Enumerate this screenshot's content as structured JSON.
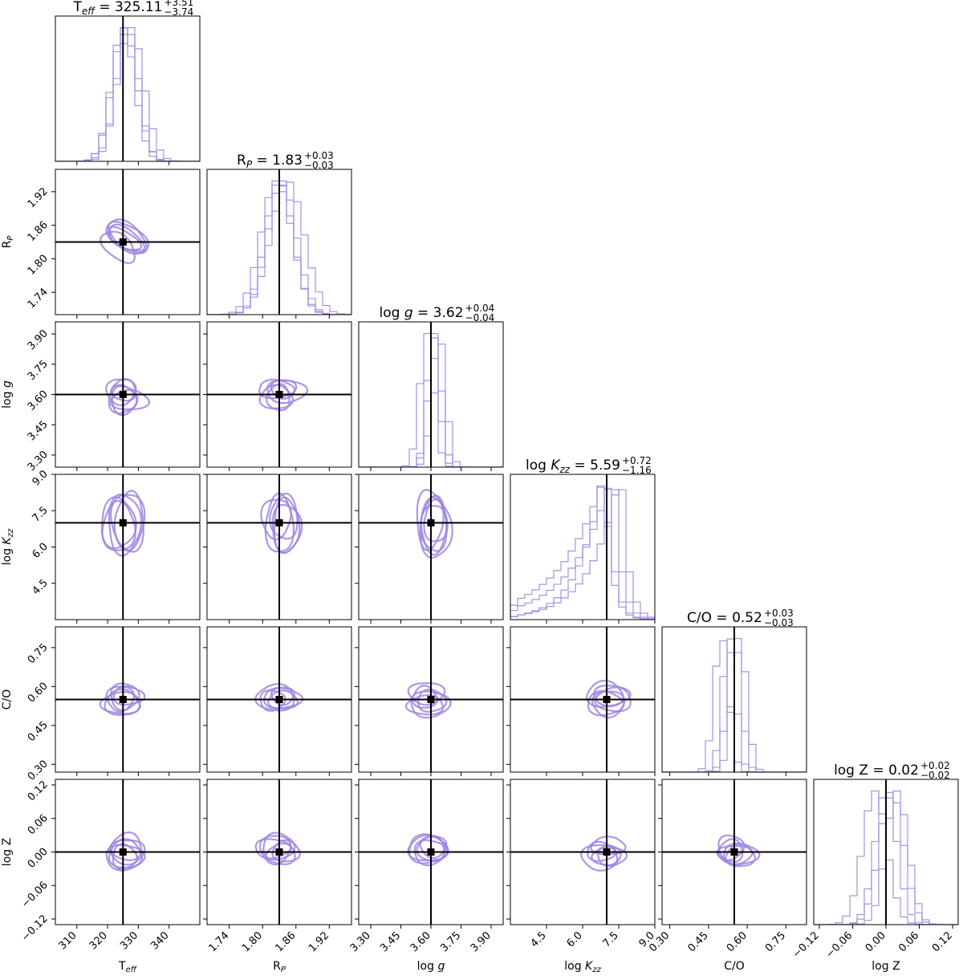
{
  "chart_data": {
    "type": "corner",
    "colors": {
      "contour": "#9d85e0",
      "truth": "#000000"
    },
    "parameters": [
      {
        "key": "teff",
        "label": "T",
        "label_sub": "eff",
        "range": [
          303,
          350
        ],
        "ticks": [
          "310",
          "320",
          "330",
          "340"
        ],
        "truth": 325,
        "title_value": "325.11",
        "err_plus": "+3.51",
        "err_minus": "−3.74"
      },
      {
        "key": "rp",
        "label": "R",
        "label_sub": "P",
        "range": [
          1.7,
          1.96
        ],
        "ticks": [
          "1.74",
          "1.80",
          "1.86",
          "1.92"
        ],
        "truth": 1.83,
        "title_value": "1.83",
        "err_plus": "+0.03",
        "err_minus": "−0.03"
      },
      {
        "key": "logg",
        "label": "log",
        "label_sub": "",
        "label_italic": "g",
        "range": [
          3.24,
          3.96
        ],
        "ticks": [
          "3.30",
          "3.45",
          "3.60",
          "3.75",
          "3.90"
        ],
        "truth": 3.6,
        "title_value": "3.62",
        "err_plus": "+0.04",
        "err_minus": "−0.04"
      },
      {
        "key": "logkzz",
        "label": "log",
        "label_sub": "zz",
        "label_italic": "K",
        "range": [
          3.0,
          9.0
        ],
        "ticks": [
          "4.5",
          "6.0",
          "7.5",
          "9.0"
        ],
        "truth": 7.0,
        "title_value": "5.59",
        "err_plus": "+0.72",
        "err_minus": "−1.16"
      },
      {
        "key": "co",
        "label": "C/O",
        "label_sub": "",
        "range": [
          0.27,
          0.83
        ],
        "ticks": [
          "0.30",
          "0.45",
          "0.60",
          "0.75"
        ],
        "truth": 0.55,
        "title_value": "0.52",
        "err_plus": "+0.03",
        "err_minus": "−0.03"
      },
      {
        "key": "logz",
        "label": "log Z",
        "label_sub": "",
        "range": [
          -0.13,
          0.13
        ],
        "ticks": [
          "−0.12",
          "−0.06",
          "0.00",
          "0.06",
          "0.12"
        ],
        "truth": 0.0,
        "title_value": "0.02",
        "err_plus": "+0.02",
        "err_minus": "−0.02"
      }
    ]
  }
}
